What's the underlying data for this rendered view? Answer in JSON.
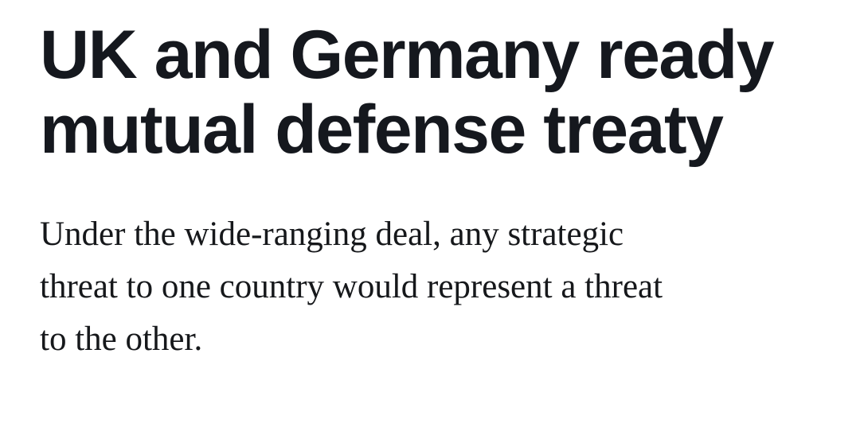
{
  "article": {
    "headline": {
      "text": "UK and Germany ready mutual defense treaty",
      "lines": [
        "UK and Germany ready",
        "mutual defense treaty"
      ]
    },
    "deck": {
      "text": "Under the wide-ranging deal, any strategic threat to one country would represent a threat to the other.",
      "lines": [
        "Under the wide-ranging deal, any strategic",
        "threat to one country would represent a threat",
        "to the other."
      ]
    }
  },
  "colors": {
    "background": "#ffffff",
    "headline_text": "#15181e",
    "deck_text": "#16181b"
  }
}
